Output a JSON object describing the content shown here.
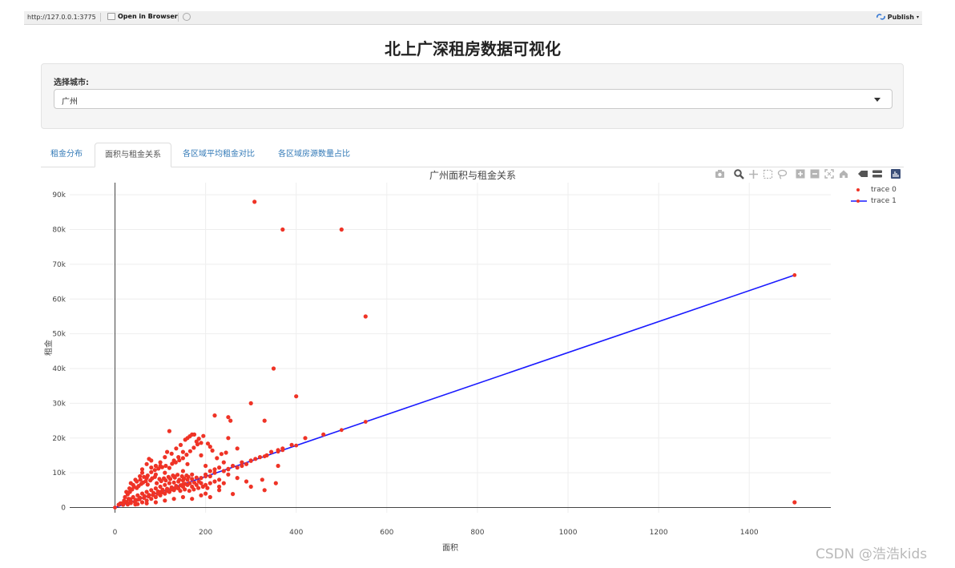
{
  "topbar": {
    "url": "http://127.0.0.1:3775",
    "open_in_browser": "Open in Browser",
    "publish": "Publish"
  },
  "page": {
    "title": "北上广深租房数据可视化"
  },
  "city_selector": {
    "label": "选择城市:",
    "selected": "广州"
  },
  "tabs": [
    {
      "label": "租金分布",
      "active": false
    },
    {
      "label": "面积与租金关系",
      "active": true
    },
    {
      "label": "各区域平均租金对比",
      "active": false
    },
    {
      "label": "各区域房源数量占比",
      "active": false
    }
  ],
  "modebar_icons": [
    "camera-icon",
    "zoom-icon",
    "pan-icon",
    "box-select-icon",
    "lasso-icon",
    "zoom-in-icon",
    "zoom-out-icon",
    "autoscale-icon",
    "home-icon",
    "spike-icon",
    "compare-icon",
    "plotly-logo-icon"
  ],
  "chart_data": {
    "type": "scatter",
    "title": "广州面积与租金关系",
    "xlabel": "面积",
    "ylabel": "租金",
    "xlim": [
      -100,
      1580
    ],
    "ylim": [
      -1500,
      93500
    ],
    "x_ticks": [
      0,
      200,
      400,
      600,
      800,
      1000,
      1200,
      1400
    ],
    "x_tick_labels": [
      "0",
      "200",
      "400",
      "600",
      "800",
      "1000",
      "1200",
      "1400"
    ],
    "y_ticks": [
      0,
      10000,
      20000,
      30000,
      40000,
      50000,
      60000,
      70000,
      80000,
      90000
    ],
    "y_tick_labels": [
      "0",
      "10k",
      "20k",
      "30k",
      "40k",
      "50k",
      "60k",
      "70k",
      "80k",
      "90k"
    ],
    "grid": true,
    "legend_position": "top-right",
    "series": [
      {
        "name": "trace 0",
        "mode": "markers",
        "color": "#ef3326",
        "points": [
          [
            308,
            88000
          ],
          [
            370,
            80000
          ],
          [
            500,
            80000
          ],
          [
            553,
            55000
          ],
          [
            350,
            40000
          ],
          [
            400,
            32000
          ],
          [
            300,
            30000
          ],
          [
            330,
            25000
          ],
          [
            220,
            26500
          ],
          [
            250,
            26000
          ],
          [
            255,
            25000
          ],
          [
            1500,
            1500
          ],
          [
            120,
            22000
          ],
          [
            170,
            21000
          ],
          [
            160,
            20000
          ],
          [
            180,
            19000
          ],
          [
            250,
            20000
          ],
          [
            270,
            17000
          ],
          [
            210,
            17500
          ],
          [
            150,
            16000
          ],
          [
            190,
            15000
          ],
          [
            140,
            14500
          ],
          [
            130,
            13500
          ],
          [
            160,
            12500
          ],
          [
            200,
            12000
          ],
          [
            240,
            13000
          ],
          [
            280,
            12000
          ],
          [
            220,
            11000
          ],
          [
            100,
            12000
          ],
          [
            80,
            11500
          ],
          [
            75,
            14000
          ],
          [
            60,
            10000
          ],
          [
            55,
            9000
          ],
          [
            70,
            8500
          ],
          [
            90,
            9500
          ],
          [
            110,
            10000
          ],
          [
            130,
            9000
          ],
          [
            150,
            10500
          ],
          [
            170,
            9500
          ],
          [
            190,
            8500
          ],
          [
            210,
            9000
          ],
          [
            230,
            8000
          ],
          [
            250,
            9500
          ],
          [
            270,
            8500
          ],
          [
            290,
            7500
          ],
          [
            325,
            8000
          ],
          [
            355,
            7000
          ],
          [
            45,
            8000
          ],
          [
            35,
            7000
          ],
          [
            20,
            2000
          ],
          [
            25,
            1500
          ],
          [
            30,
            2500
          ],
          [
            35,
            1800
          ],
          [
            40,
            3000
          ],
          [
            45,
            2200
          ],
          [
            50,
            3500
          ],
          [
            55,
            2800
          ],
          [
            60,
            4000
          ],
          [
            65,
            3300
          ],
          [
            70,
            4500
          ],
          [
            75,
            3600
          ],
          [
            80,
            5000
          ],
          [
            85,
            4200
          ],
          [
            90,
            5500
          ],
          [
            95,
            4600
          ],
          [
            100,
            6000
          ],
          [
            105,
            5100
          ],
          [
            110,
            6500
          ],
          [
            115,
            5400
          ],
          [
            120,
            7000
          ],
          [
            125,
            5800
          ],
          [
            130,
            7200
          ],
          [
            135,
            6200
          ],
          [
            140,
            7500
          ],
          [
            145,
            6400
          ],
          [
            150,
            7800
          ],
          [
            155,
            6800
          ],
          [
            160,
            8000
          ],
          [
            165,
            7000
          ],
          [
            170,
            8200
          ],
          [
            175,
            7200
          ],
          [
            180,
            8600
          ],
          [
            185,
            7500
          ],
          [
            15,
            1200
          ],
          [
            22,
            3000
          ],
          [
            28,
            3800
          ],
          [
            33,
            4500
          ],
          [
            38,
            5200
          ],
          [
            42,
            6000
          ],
          [
            48,
            5600
          ],
          [
            52,
            6200
          ],
          [
            58,
            6800
          ],
          [
            62,
            7200
          ],
          [
            68,
            7600
          ],
          [
            72,
            6600
          ],
          [
            78,
            7800
          ],
          [
            82,
            8400
          ],
          [
            88,
            8800
          ],
          [
            92,
            7000
          ],
          [
            98,
            8200
          ],
          [
            102,
            7600
          ],
          [
            108,
            8400
          ],
          [
            112,
            7800
          ],
          [
            118,
            8800
          ],
          [
            122,
            8200
          ],
          [
            128,
            9200
          ],
          [
            132,
            8600
          ],
          [
            138,
            9400
          ],
          [
            142,
            8000
          ],
          [
            148,
            9000
          ],
          [
            152,
            8400
          ],
          [
            158,
            9200
          ],
          [
            162,
            8800
          ],
          [
            50,
            1000
          ],
          [
            60,
            1500
          ],
          [
            70,
            2000
          ],
          [
            80,
            2500
          ],
          [
            90,
            3000
          ],
          [
            100,
            3500
          ],
          [
            110,
            4000
          ],
          [
            120,
            4500
          ],
          [
            130,
            5000
          ],
          [
            140,
            5500
          ],
          [
            150,
            6000
          ],
          [
            160,
            6500
          ],
          [
            170,
            6000
          ],
          [
            180,
            6500
          ],
          [
            190,
            7000
          ],
          [
            200,
            6500
          ],
          [
            210,
            7000
          ],
          [
            220,
            7500
          ],
          [
            230,
            6000
          ],
          [
            240,
            7000
          ],
          [
            18,
            800
          ],
          [
            26,
            1600
          ],
          [
            34,
            2400
          ],
          [
            44,
            1600
          ],
          [
            54,
            2400
          ],
          [
            64,
            2800
          ],
          [
            74,
            3200
          ],
          [
            84,
            3600
          ],
          [
            94,
            4000
          ],
          [
            104,
            4400
          ],
          [
            114,
            4800
          ],
          [
            124,
            5200
          ],
          [
            134,
            5600
          ],
          [
            144,
            4800
          ],
          [
            154,
            5200
          ],
          [
            164,
            4800
          ],
          [
            174,
            5200
          ],
          [
            184,
            5600
          ],
          [
            194,
            6000
          ],
          [
            204,
            5600
          ],
          [
            25,
            4500
          ],
          [
            32,
            5500
          ],
          [
            40,
            6500
          ],
          [
            48,
            7500
          ],
          [
            56,
            8000
          ],
          [
            64,
            8800
          ],
          [
            72,
            9200
          ],
          [
            80,
            10200
          ],
          [
            88,
            10800
          ],
          [
            96,
            11200
          ],
          [
            104,
            11600
          ],
          [
            112,
            12000
          ],
          [
            120,
            11400
          ],
          [
            126,
            12600
          ],
          [
            134,
            13000
          ],
          [
            142,
            13600
          ],
          [
            150,
            14200
          ],
          [
            158,
            15200
          ],
          [
            166,
            16200
          ],
          [
            174,
            17200
          ],
          [
            182,
            18200
          ],
          [
            190,
            18600
          ],
          [
            200,
            9500
          ],
          [
            210,
            10500
          ],
          [
            220,
            10000
          ],
          [
            230,
            11500
          ],
          [
            240,
            10500
          ],
          [
            250,
            11000
          ],
          [
            260,
            12000
          ],
          [
            270,
            11500
          ],
          [
            280,
            13000
          ],
          [
            290,
            12500
          ],
          [
            300,
            13500
          ],
          [
            310,
            14000
          ],
          [
            320,
            14500
          ],
          [
            335,
            15000
          ],
          [
            345,
            16000
          ],
          [
            360,
            16500
          ],
          [
            370,
            17000
          ],
          [
            390,
            18000
          ],
          [
            420,
            20000
          ],
          [
            460,
            21000
          ],
          [
            60,
            11000
          ],
          [
            70,
            12500
          ],
          [
            80,
            13500
          ],
          [
            90,
            12000
          ],
          [
            100,
            13000
          ],
          [
            110,
            14500
          ],
          [
            115,
            16000
          ],
          [
            125,
            15500
          ],
          [
            135,
            17000
          ],
          [
            145,
            18000
          ],
          [
            155,
            19500
          ],
          [
            165,
            20500
          ],
          [
            175,
            21000
          ],
          [
            185,
            19800
          ],
          [
            195,
            20600
          ],
          [
            205,
            18400
          ],
          [
            215,
            16400
          ],
          [
            225,
            14200
          ],
          [
            235,
            15400
          ],
          [
            245,
            15800
          ],
          [
            260,
            3900
          ],
          [
            300,
            6000
          ],
          [
            330,
            5000
          ],
          [
            360,
            12000
          ],
          [
            230,
            5000
          ],
          [
            200,
            4000
          ],
          [
            210,
            3000
          ],
          [
            190,
            3500
          ],
          [
            170,
            2500
          ],
          [
            150,
            3000
          ],
          [
            130,
            2500
          ],
          [
            110,
            2000
          ],
          [
            90,
            1500
          ],
          [
            70,
            1200
          ],
          [
            45,
            900
          ],
          [
            35,
            1300
          ],
          [
            28,
            900
          ],
          [
            20,
            1600
          ],
          [
            12,
            1200
          ],
          [
            8,
            800
          ]
        ]
      },
      {
        "name": "trace 1",
        "mode": "lines+markers",
        "color": "#1a1aff",
        "marker_color": "#ef3326",
        "x": [
          0,
          50,
          100,
          150,
          200,
          250,
          300,
          330,
          360,
          370,
          400,
          500,
          553,
          1500
        ],
        "y": [
          0,
          2230,
          4460,
          6690,
          8920,
          11150,
          13380,
          14720,
          16060,
          16500,
          17840,
          22300,
          24660,
          66900
        ]
      }
    ]
  }
}
